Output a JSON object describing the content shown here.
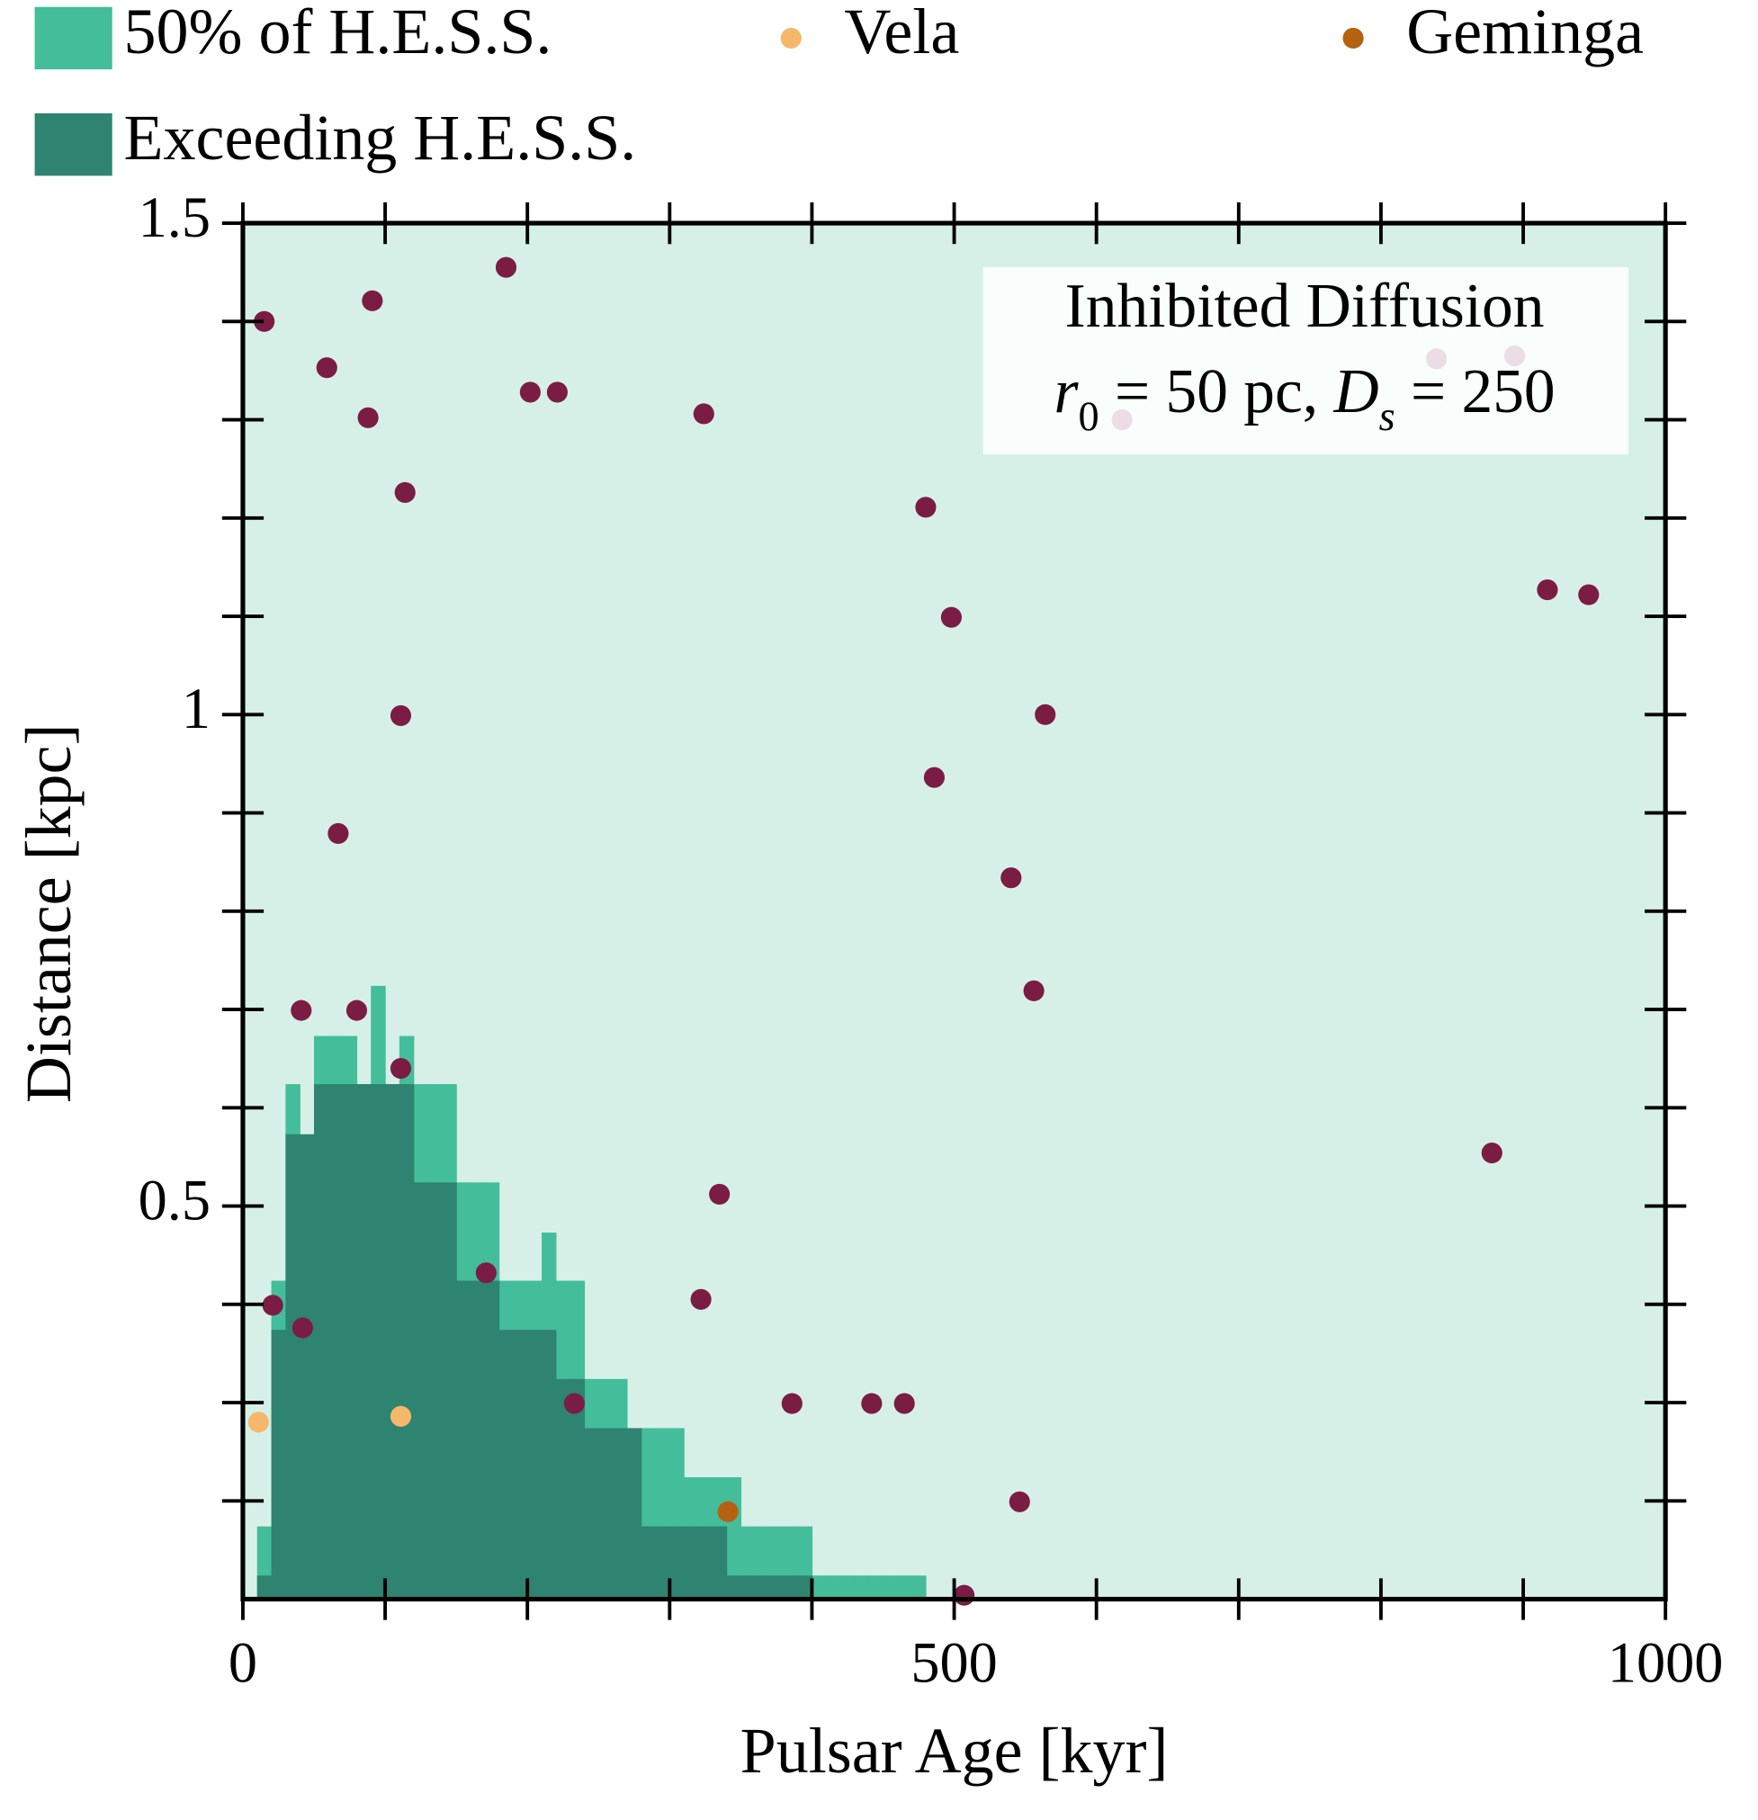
{
  "chart_data": {
    "type": "scatter",
    "x_label": "Pulsar Age [kyr]",
    "y_label": "Distance [kpc]",
    "xlim": [
      0,
      1000
    ],
    "ylim": [
      0.1,
      1.5
    ],
    "xticks": [
      0,
      500,
      1000
    ],
    "yticks": [
      0.5,
      1,
      1.5
    ],
    "xminorticks": [
      100,
      200,
      300,
      400,
      600,
      700,
      800,
      900
    ],
    "yminorticks": [
      0.2,
      0.3,
      0.4,
      0.6,
      0.7,
      0.8,
      0.9,
      1.1,
      1.2,
      1.3,
      1.4
    ],
    "background_color": "#d6f0e8",
    "histograms": [
      {
        "name": "50% of H.E.S.S.",
        "color": "#44bd9a",
        "bins": [
          10,
          20,
          30,
          40,
          50,
          60,
          70,
          80,
          90,
          100,
          110,
          120,
          130,
          140,
          150,
          160,
          170,
          180,
          190,
          200,
          210,
          220,
          230,
          240,
          250,
          260,
          270,
          280,
          290,
          300,
          310,
          320,
          330,
          340,
          350,
          360,
          370,
          380,
          390,
          400,
          410,
          420,
          430,
          440,
          450,
          460,
          470,
          480
        ],
        "values": [
          0.174,
          0.424,
          0.624,
          0.524,
          0.673,
          0.673,
          0.673,
          0.624,
          0.724,
          0.624,
          0.673,
          0.624,
          0.624,
          0.624,
          0.524,
          0.524,
          0.524,
          0.424,
          0.424,
          0.424,
          0.473,
          0.424,
          0.424,
          0.324,
          0.324,
          0.324,
          0.274,
          0.274,
          0.274,
          0.274,
          0.224,
          0.224,
          0.224,
          0.224,
          0.174,
          0.174,
          0.174,
          0.174,
          0.174,
          0.124,
          0.124,
          0.124,
          0.124,
          0.124,
          0.124,
          0.124,
          0.124
        ]
      },
      {
        "name": "Exceeding H.E.S.S.",
        "color": "#2e8470",
        "bins": [
          10,
          20,
          30,
          40,
          50,
          60,
          70,
          80,
          90,
          100,
          110,
          120,
          130,
          140,
          150,
          160,
          170,
          180,
          190,
          200,
          210,
          220,
          230,
          240,
          250,
          260,
          270,
          280,
          290,
          300,
          310,
          320,
          330,
          340,
          350,
          360,
          370,
          380,
          390,
          400
        ],
        "values": [
          0.124,
          0.374,
          0.573,
          0.573,
          0.624,
          0.624,
          0.624,
          0.624,
          0.624,
          0.624,
          0.624,
          0.524,
          0.524,
          0.524,
          0.424,
          0.424,
          0.424,
          0.374,
          0.374,
          0.374,
          0.374,
          0.324,
          0.324,
          0.274,
          0.274,
          0.274,
          0.274,
          0.174,
          0.174,
          0.174,
          0.174,
          0.174,
          0.174,
          0.124,
          0.124,
          0.124,
          0.124,
          0.124,
          0.124
        ]
      }
    ],
    "series": [
      {
        "color": "#7b1c45",
        "x": [
          15,
          91,
          185,
          59,
          88,
          202,
          221,
          324,
          114,
          480,
          498,
          917,
          946,
          111,
          564,
          486,
          67,
          540,
          556,
          41,
          80,
          111,
          878,
          335,
          171,
          322,
          21,
          42,
          233,
          386,
          442,
          465,
          546,
          507,
          618,
          839,
          894
        ],
        "y": [
          1.4,
          1.421,
          1.455,
          1.353,
          1.302,
          1.328,
          1.328,
          1.306,
          1.226,
          1.211,
          1.099,
          1.127,
          1.122,
          0.999,
          1.0,
          0.936,
          0.879,
          0.834,
          0.719,
          0.699,
          0.699,
          0.64,
          0.554,
          0.512,
          0.432,
          0.405,
          0.399,
          0.376,
          0.299,
          0.299,
          0.299,
          0.299,
          0.199,
          0.104,
          1.3,
          1.362,
          1.365
        ]
      },
      {
        "name": "Vela",
        "color": "#f5b86b",
        "x": [
          11,
          111
        ],
        "y": [
          0.28,
          0.286
        ]
      },
      {
        "name": "Geminga",
        "color": "#b5610f",
        "x": [
          341
        ],
        "y": [
          0.189
        ]
      }
    ],
    "annotation": {
      "title": "Inhibited Diffusion",
      "parts": [
        "r",
        "0",
        " = 50 pc, ",
        "D",
        "s",
        " = 250"
      ]
    }
  }
}
